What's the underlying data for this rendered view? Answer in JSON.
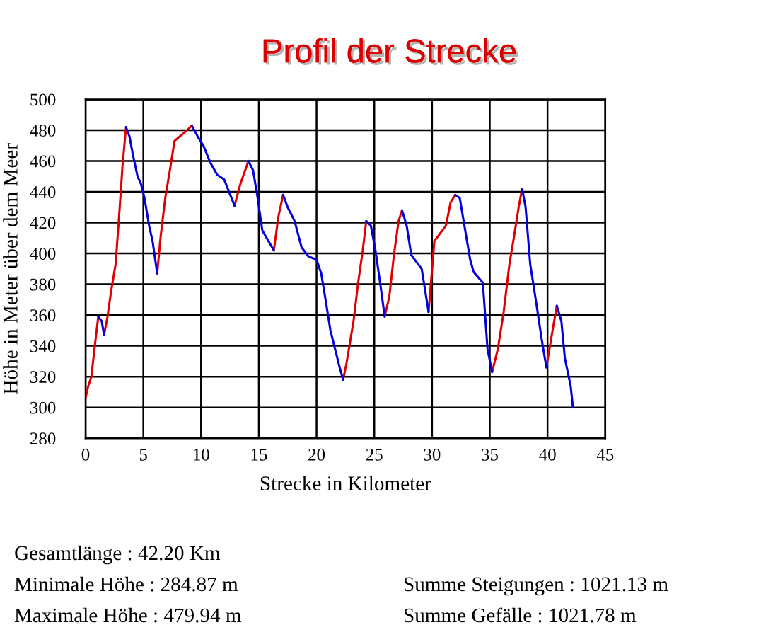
{
  "chart_data": {
    "type": "line",
    "title": "Profil der Strecke",
    "xlabel": "Strecke in Kilometer",
    "ylabel": "Höhe in Meter über dem Meer",
    "xlim": [
      0,
      45
    ],
    "xticks": [
      0,
      5,
      10,
      15,
      20,
      25,
      30,
      35,
      40,
      45
    ],
    "ylim": [
      280,
      500
    ],
    "yticks": [
      280,
      300,
      320,
      340,
      360,
      380,
      400,
      420,
      440,
      460,
      480,
      500
    ],
    "grid": true,
    "x": [
      0,
      0.2,
      0.5,
      0.8,
      1.1,
      1.4,
      1.6,
      1.9,
      2.2,
      2.6,
      2.9,
      3.2,
      3.5,
      3.8,
      4.1,
      4.5,
      4.8,
      5.1,
      5.5,
      5.8,
      6.2,
      6.5,
      6.9,
      7.3,
      7.7,
      8.8,
      9.2,
      9.7,
      10.2,
      10.8,
      11.4,
      12.0,
      12.9,
      13.4,
      14.1,
      14.5,
      14.9,
      15.3,
      16.3,
      16.7,
      17.1,
      17.5,
      18.1,
      18.7,
      19.3,
      20.0,
      20.4,
      20.8,
      21.2,
      21.6,
      22.0,
      22.3,
      22.6,
      23.2,
      23.6,
      24.0,
      24.3,
      24.7,
      25.1,
      25.5,
      25.9,
      26.3,
      26.7,
      27.1,
      27.4,
      27.8,
      28.2,
      29.1,
      29.7,
      30.2,
      31.2,
      31.6,
      32.0,
      32.4,
      32.8,
      33.3,
      33.6,
      34.4,
      34.8,
      35.2,
      35.7,
      36.2,
      36.7,
      37.1,
      37.5,
      37.8,
      38.1,
      38.5,
      39.0,
      39.5,
      39.9,
      40.3,
      40.8,
      41.2,
      41.5,
      42.0,
      42.2
    ],
    "series": [
      {
        "color": "#e00000",
        "values": [
          306,
          313,
          320,
          340,
          359,
          null,
          347,
          359,
          375,
          393,
          424,
          457,
          482,
          null,
          null,
          null,
          null,
          null,
          null,
          null,
          387,
          411,
          436,
          454,
          473,
          480,
          483,
          null,
          null,
          null,
          null,
          null,
          431,
          445,
          460,
          null,
          null,
          null,
          402,
          424,
          438,
          null,
          null,
          null,
          null,
          null,
          null,
          null,
          null,
          null,
          null,
          318,
          329,
          356,
          381,
          402,
          421,
          null,
          null,
          null,
          359,
          372,
          399,
          421,
          428,
          null,
          null,
          null,
          362,
          408,
          418,
          433,
          438,
          null,
          null,
          null,
          null,
          null,
          null,
          323,
          338,
          362,
          393,
          411,
          430,
          442,
          null,
          null,
          null,
          null,
          326,
          344,
          366,
          null,
          null,
          null,
          null
        ]
      },
      {
        "color": "#0000e0",
        "values": [
          null,
          null,
          null,
          null,
          359,
          356,
          347,
          null,
          null,
          null,
          null,
          null,
          482,
          476,
          464,
          450,
          445,
          436,
          418,
          408,
          387,
          null,
          null,
          null,
          null,
          null,
          483,
          476,
          470,
          459,
          451,
          448,
          431,
          null,
          460,
          454,
          436,
          415,
          402,
          null,
          438,
          430,
          421,
          404,
          398,
          396,
          387,
          369,
          350,
          338,
          326,
          318,
          null,
          null,
          null,
          null,
          421,
          418,
          402,
          381,
          359,
          null,
          null,
          null,
          428,
          418,
          399,
          390,
          362,
          null,
          null,
          null,
          438,
          436,
          418,
          396,
          388,
          381,
          338,
          323,
          null,
          null,
          null,
          null,
          null,
          442,
          430,
          393,
          369,
          344,
          326,
          null,
          366,
          356,
          332,
          314,
          300
        ]
      }
    ],
    "annotations": [
      "Gesamtlänge : 42.20 Km",
      "Minimale Höhe : 284.87 m",
      "Maximale Höhe : 479.94 m",
      "Summe Steigungen : 1021.13 m",
      "Summe Gefälle : 1021.78 m"
    ]
  }
}
